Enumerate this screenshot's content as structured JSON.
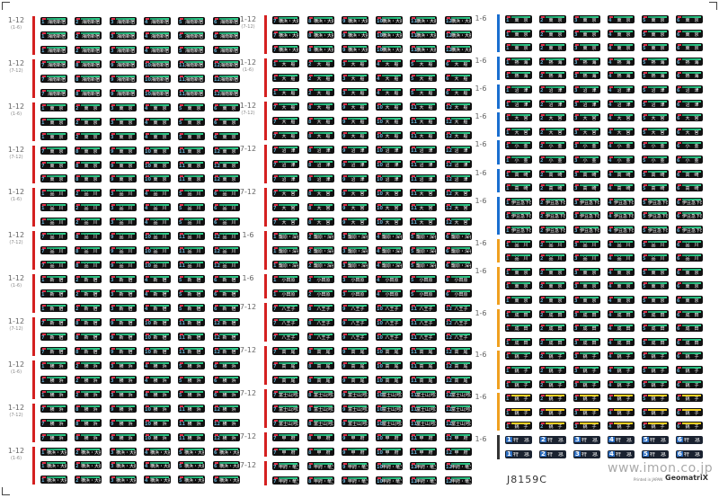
{
  "sheet_code": "J8159C",
  "website": "www.imon.co.jp",
  "printed_note": "Printed in JAPAN",
  "brand": "GeomatriX",
  "colors": {
    "red_bar": "#d42020",
    "blue_bar": "#1a6fd0",
    "orange_bar": "#f0a020",
    "dark_bar": "#333333",
    "badge": "#111111"
  },
  "columns": [
    {
      "groups": [
        {
          "label": "1-12",
          "sub": "(1-6)",
          "rows": 3,
          "start": 1,
          "dest": "湘南新宿",
          "bar": "red_bar"
        },
        {
          "label": "1-12",
          "sub": "(7-12)",
          "rows": 3,
          "start": 7,
          "dest": "湘南新宿",
          "bar": "red_bar"
        },
        {
          "label": "1-12",
          "sub": "(1-6)",
          "rows": 3,
          "start": 1,
          "dest": "東　京",
          "bar": "red_bar"
        },
        {
          "label": "1-12",
          "sub": "(7-12)",
          "rows": 3,
          "start": 7,
          "dest": "東　京",
          "bar": "red_bar"
        },
        {
          "label": "1-12",
          "sub": "(1-6)",
          "rows": 3,
          "start": 1,
          "dest": "品　川",
          "bar": "red_bar"
        },
        {
          "label": "1-12",
          "sub": "(7-12)",
          "rows": 3,
          "start": 7,
          "dest": "品　川",
          "bar": "red_bar"
        },
        {
          "label": "1-12",
          "sub": "(1-6)",
          "rows": 3,
          "start": 1,
          "dest": "新　宿",
          "bar": "red_bar"
        },
        {
          "label": "1-12",
          "sub": "(7-12)",
          "rows": 3,
          "start": 7,
          "dest": "新　宿",
          "bar": "red_bar"
        },
        {
          "label": "1-12",
          "sub": "(1-6)",
          "rows": 3,
          "start": 1,
          "dest": "横　浜",
          "bar": "red_bar"
        },
        {
          "label": "1-12",
          "sub": "(7-12)",
          "rows": 3,
          "start": 7,
          "dest": "横　浜",
          "bar": "red_bar"
        },
        {
          "label": "1-12",
          "sub": "(1-6)",
          "rows": 3,
          "start": 1,
          "dest": "横浜・大船",
          "bar": "red_bar"
        }
      ]
    },
    {
      "groups": [
        {
          "label": "1-12",
          "sub": "(7-12)",
          "rows": 3,
          "start": 7,
          "dest": "横浜・大船",
          "bar": "red_bar"
        },
        {
          "label": "1-12",
          "sub": "(1-6)",
          "rows": 3,
          "start": 1,
          "dest": "大　船",
          "bar": "red_bar"
        },
        {
          "label": "1-12",
          "sub": "(7-12)",
          "rows": 3,
          "start": 7,
          "dest": "大　船",
          "bar": "red_bar"
        },
        {
          "label": "7-12",
          "sub": "",
          "rows": 3,
          "start": 7,
          "dest": "沼　津",
          "bar": "red_bar"
        },
        {
          "label": "7-12",
          "sub": "",
          "rows": 3,
          "start": 7,
          "dest": "大　宮",
          "bar": "red_bar"
        },
        {
          "label": "1-6",
          "sub": "",
          "rows": 3,
          "start": 1,
          "dest": "籠原・深谷",
          "bar": "red_bar"
        },
        {
          "label": "1-6",
          "sub": "",
          "rows": 2,
          "start": 1,
          "dest": "小田原",
          "bar": "red_bar"
        },
        {
          "label": "7-12",
          "sub": "",
          "rows": 3,
          "start": 7,
          "dest": "八王子",
          "bar": "red_bar"
        },
        {
          "label": "7-12",
          "sub": "",
          "rows": 3,
          "start": 7,
          "dest": "高　尾",
          "bar": "red_bar"
        },
        {
          "label": "7-12",
          "sub": "",
          "rows": 3,
          "start": 7,
          "dest": "富士山河口湖",
          "bar": "red_bar"
        },
        {
          "label": "7-12",
          "sub": "",
          "rows": 2,
          "start": 7,
          "dest": "甲　府",
          "bar": "red_bar"
        },
        {
          "label": "7-12",
          "sub": "",
          "rows": 2,
          "start": 7,
          "dest": "甲府・竜王",
          "bar": "red_bar"
        }
      ]
    },
    {
      "groups": [
        {
          "label": "1-6",
          "sub": "",
          "rows": 3,
          "start": 1,
          "dest": "東　京",
          "bar": "blue_bar"
        },
        {
          "label": "1-6",
          "sub": "",
          "rows": 2,
          "start": 1,
          "dest": "熱　海",
          "bar": "blue_bar"
        },
        {
          "label": "1-6",
          "sub": "",
          "rows": 2,
          "start": 1,
          "dest": "沼　津",
          "bar": "blue_bar"
        },
        {
          "label": "1-6",
          "sub": "",
          "rows": 2,
          "start": 1,
          "dest": "大　宮",
          "bar": "blue_bar"
        },
        {
          "label": "1-6",
          "sub": "",
          "rows": 2,
          "start": 1,
          "dest": "小　金",
          "bar": "blue_bar"
        },
        {
          "label": "1-6",
          "sub": "",
          "rows": 2,
          "start": 1,
          "dest": "高　崎",
          "bar": "blue_bar"
        },
        {
          "label": "1-6",
          "sub": "",
          "rows": 3,
          "start": 1,
          "dest": "伊豆急下田",
          "bar": "blue_bar"
        },
        {
          "label": "1-6",
          "sub": "",
          "rows": 2,
          "start": 1,
          "dest": "品　川",
          "bar": "orange_bar"
        },
        {
          "label": "1-6",
          "sub": "",
          "rows": 3,
          "start": 1,
          "dest": "東　京",
          "bar": "orange_bar"
        },
        {
          "label": "1-6",
          "sub": "",
          "rows": 3,
          "start": 1,
          "dest": "成　田",
          "bar": "orange_bar"
        },
        {
          "label": "1-6",
          "sub": "",
          "rows": 3,
          "start": 1,
          "dest": "銚　子",
          "bar": "orange_bar"
        },
        {
          "label": "1-6",
          "sub": "",
          "rows": 3,
          "start": 1,
          "dest": "銚　子",
          "bar": "orange_bar",
          "style": "y"
        },
        {
          "label": "1-6",
          "sub": "",
          "rows": 2,
          "start": 1,
          "dest": "特　急",
          "bar": "dark_bar",
          "style": "d"
        }
      ]
    }
  ]
}
